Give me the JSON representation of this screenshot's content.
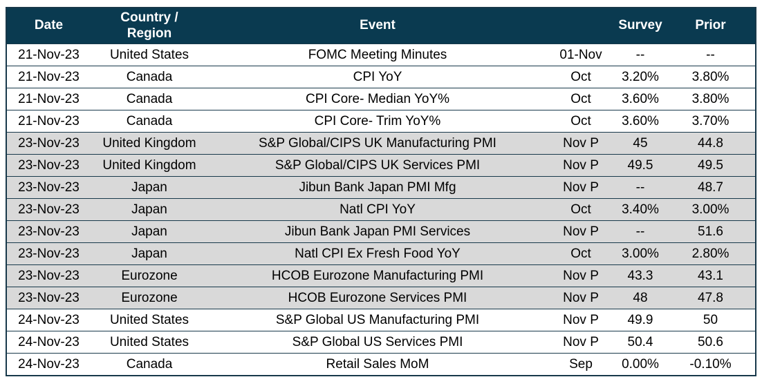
{
  "colors": {
    "header_bg": "#0a3a50",
    "header_text": "#ffffff",
    "row_bg": "#ffffff",
    "row_shaded_bg": "#d9d9d9",
    "grid_line": "#17384a",
    "text": "#000000"
  },
  "table": {
    "columns": [
      {
        "key": "date",
        "label": "Date"
      },
      {
        "key": "country",
        "label": "Country /\nRegion"
      },
      {
        "key": "event",
        "label": "Event"
      },
      {
        "key": "period",
        "label": ""
      },
      {
        "key": "survey",
        "label": "Survey"
      },
      {
        "key": "prior",
        "label": "Prior"
      }
    ],
    "rows": [
      {
        "date": "21-Nov-23",
        "country": "United States",
        "event": "FOMC Meeting Minutes",
        "period": "01-Nov",
        "survey": "--",
        "prior": "--",
        "shaded": false
      },
      {
        "date": "21-Nov-23",
        "country": "Canada",
        "event": "CPI YoY",
        "period": "Oct",
        "survey": "3.20%",
        "prior": "3.80%",
        "shaded": false
      },
      {
        "date": "21-Nov-23",
        "country": "Canada",
        "event": "CPI Core- Median YoY%",
        "period": "Oct",
        "survey": "3.60%",
        "prior": "3.80%",
        "shaded": false
      },
      {
        "date": "21-Nov-23",
        "country": "Canada",
        "event": "CPI Core- Trim YoY%",
        "period": "Oct",
        "survey": "3.60%",
        "prior": "3.70%",
        "shaded": false
      },
      {
        "date": "23-Nov-23",
        "country": "United Kingdom",
        "event": "S&P Global/CIPS UK Manufacturing PMI",
        "period": "Nov P",
        "survey": "45",
        "prior": "44.8",
        "shaded": true
      },
      {
        "date": "23-Nov-23",
        "country": "United Kingdom",
        "event": "S&P Global/CIPS UK Services PMI",
        "period": "Nov P",
        "survey": "49.5",
        "prior": "49.5",
        "shaded": true
      },
      {
        "date": "23-Nov-23",
        "country": "Japan",
        "event": "Jibun Bank Japan PMI Mfg",
        "period": "Nov P",
        "survey": "--",
        "prior": "48.7",
        "shaded": true
      },
      {
        "date": "23-Nov-23",
        "country": "Japan",
        "event": "Natl CPI YoY",
        "period": "Oct",
        "survey": "3.40%",
        "prior": "3.00%",
        "shaded": true
      },
      {
        "date": "23-Nov-23",
        "country": "Japan",
        "event": "Jibun Bank Japan PMI Services",
        "period": "Nov P",
        "survey": "--",
        "prior": "51.6",
        "shaded": true
      },
      {
        "date": "23-Nov-23",
        "country": "Japan",
        "event": "Natl CPI Ex Fresh Food YoY",
        "period": "Oct",
        "survey": "3.00%",
        "prior": "2.80%",
        "shaded": true
      },
      {
        "date": "23-Nov-23",
        "country": "Eurozone",
        "event": "HCOB Eurozone Manufacturing PMI",
        "period": "Nov P",
        "survey": "43.3",
        "prior": "43.1",
        "shaded": true
      },
      {
        "date": "23-Nov-23",
        "country": "Eurozone",
        "event": "HCOB Eurozone Services PMI",
        "period": "Nov P",
        "survey": "48",
        "prior": "47.8",
        "shaded": true
      },
      {
        "date": "24-Nov-23",
        "country": "United States",
        "event": "S&P Global US Manufacturing PMI",
        "period": "Nov P",
        "survey": "49.9",
        "prior": "50",
        "shaded": false
      },
      {
        "date": "24-Nov-23",
        "country": "United States",
        "event": "S&P Global US Services PMI",
        "period": "Nov P",
        "survey": "50.4",
        "prior": "50.6",
        "shaded": false
      },
      {
        "date": "24-Nov-23",
        "country": "Canada",
        "event": "Retail Sales MoM",
        "period": "Sep",
        "survey": "0.00%",
        "prior": "-0.10%",
        "shaded": false
      }
    ]
  }
}
